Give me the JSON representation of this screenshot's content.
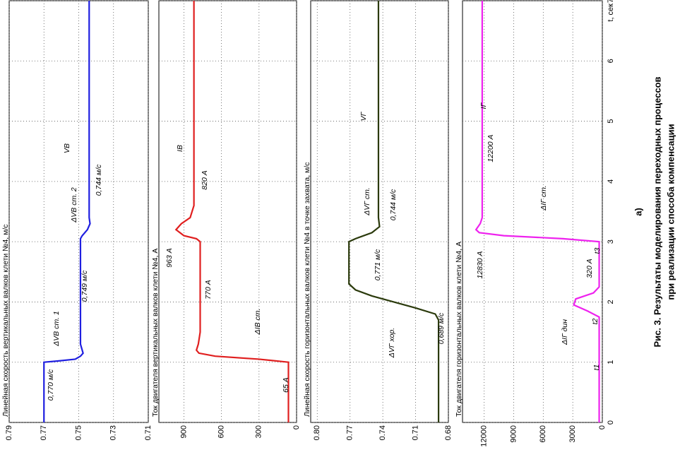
{
  "chart_data": [
    {
      "type": "line",
      "title": "Линейная скорость вертикальных валков клети №4, м/с",
      "color": "#1f1fe0",
      "x": [
        0,
        1,
        1.02,
        1.05,
        1.1,
        1.15,
        1.2,
        1.3,
        3.05,
        3.1,
        3.2,
        3.3,
        3.4,
        7
      ],
      "values": [
        0.77,
        0.77,
        0.762,
        0.752,
        0.749,
        0.7475,
        0.748,
        0.749,
        0.749,
        0.748,
        0.745,
        0.7435,
        0.744,
        0.744
      ],
      "xlim": [
        0,
        7
      ],
      "xticks": [
        0,
        1,
        2,
        3,
        4,
        5,
        6,
        7
      ],
      "ylim": [
        0.71,
        0.79
      ],
      "yticks": [
        0.79,
        0.77,
        0.75,
        0.73,
        0.71
      ],
      "grid": true,
      "annotations": [
        "0,770 м/с",
        "ΔVВ ст. 1",
        "0,749 м/с",
        "ΔVВ ст. 2",
        "0,744 м/с",
        "VВ"
      ]
    },
    {
      "type": "line",
      "title": "Ток двигателя вертикальных валков клети №4, А",
      "color": "#e01f1f",
      "x": [
        0,
        1,
        1.05,
        1.1,
        1.15,
        1.2,
        1.3,
        1.5,
        3.0,
        3.05,
        3.1,
        3.2,
        3.3,
        3.4,
        3.6,
        7
      ],
      "values": [
        65,
        65,
        300,
        650,
        780,
        800,
        785,
        770,
        770,
        800,
        900,
        963,
        920,
        850,
        820,
        820
      ],
      "xlim": [
        0,
        7
      ],
      "xticks": [
        0,
        1,
        2,
        3,
        4,
        5,
        6,
        7
      ],
      "ylim": [
        0,
        1100
      ],
      "yticks": [
        900,
        600,
        300,
        0
      ],
      "grid": true,
      "annotations": [
        "65 А",
        "ΔIВ ст.",
        "770 А",
        "963 А",
        "820 А",
        "IВ"
      ]
    },
    {
      "type": "line",
      "title": "Линейная скорость горизонтальных валков клети №4 в точке захвата, м/с",
      "color": "#2b3a0c",
      "x": [
        0,
        1.7,
        1.8,
        1.9,
        2.0,
        2.1,
        2.2,
        2.3,
        3.0,
        3.05,
        3.15,
        3.25,
        3.4,
        7
      ],
      "values": [
        0.689,
        0.689,
        0.692,
        0.71,
        0.73,
        0.75,
        0.765,
        0.771,
        0.771,
        0.765,
        0.75,
        0.743,
        0.744,
        0.744
      ],
      "xlim": [
        0,
        7
      ],
      "xticks": [
        0,
        1,
        2,
        3,
        4,
        5,
        6,
        7
      ],
      "ylim": [
        0.68,
        0.806
      ],
      "yticks": [
        {
          "value": 0.8,
          "label": "0.80"
        },
        0.77,
        0.74,
        0.71,
        0.68
      ],
      "grid": true,
      "annotations": [
        "0,689 м/с",
        "ΔVГ хор.",
        "0,771 м/с",
        "ΔVГ ст.",
        "0,744 м/с",
        "VГ"
      ]
    },
    {
      "type": "line",
      "title": "Ток двигателя горизонтальных валков клети №4, А",
      "color": "#ee22ee",
      "x": [
        0,
        1.75,
        1.85,
        1.95,
        2.05,
        2.15,
        2.25,
        3.0,
        3.05,
        3.1,
        3.15,
        3.2,
        3.3,
        3.4,
        7
      ],
      "values": [
        320,
        320,
        1500,
        2900,
        2700,
        900,
        320,
        320,
        4000,
        10000,
        12500,
        12830,
        12400,
        12200,
        12200
      ],
      "xlim": [
        0,
        7
      ],
      "xticks": [
        0,
        1,
        2,
        3,
        4,
        5,
        6,
        7
      ],
      "xlabel": "t, сек",
      "ylim": [
        0,
        14200
      ],
      "yticks": [
        12000,
        9000,
        6000,
        3000,
        0
      ],
      "grid": true,
      "annotations": [
        "12830 А",
        "320 А",
        "t3",
        "ΔIГ дин",
        "t2",
        "t1",
        "ΔIГ ст.",
        "12200 А",
        "IГ"
      ]
    }
  ],
  "caption": {
    "label": "а)",
    "lines": [
      "Рис. 3. Результаты моделирования переходных процессов",
      "при реализации способа компенсации"
    ]
  }
}
